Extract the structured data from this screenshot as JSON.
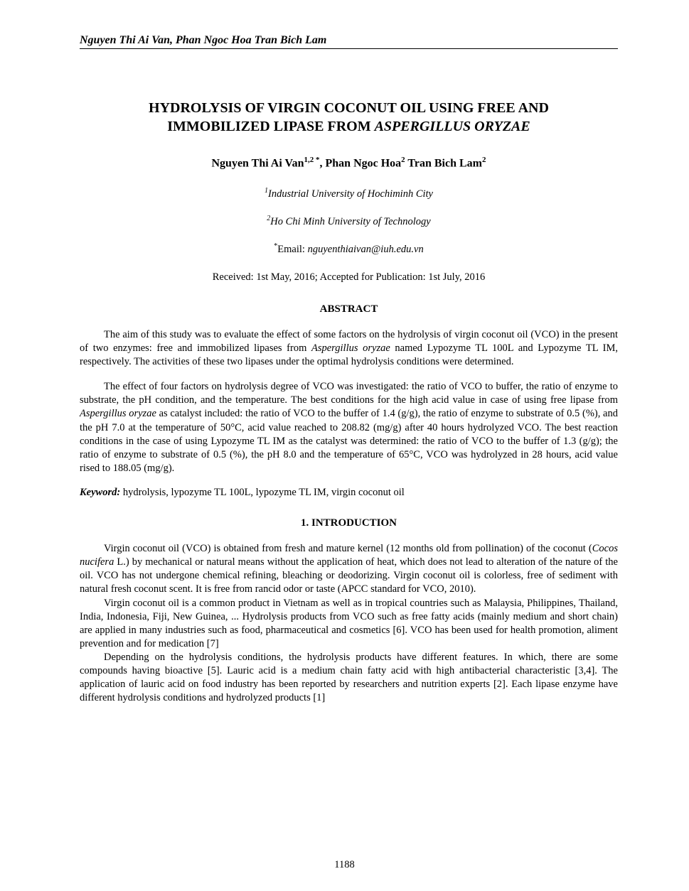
{
  "header": {
    "running": "Nguyen Thi Ai Van, Phan Ngoc Hoa Tran Bich Lam"
  },
  "title": {
    "line1": "HYDROLYSIS OF VIRGIN COCONUT OIL USING FREE AND",
    "line2_plain": "IMMOBILIZED LIPASE FROM ",
    "line2_italic": "ASPERGILLUS ORYZAE"
  },
  "authors": {
    "a1_name": "Nguyen Thi Ai Van",
    "a1_sup": "1,2 *",
    "sep1": ", ",
    "a2_name": "Phan Ngoc Hoa",
    "a2_sup": "2",
    "sep2": " ",
    "a3_name": "Tran Bich Lam",
    "a3_sup": "2"
  },
  "affiliations": {
    "aff1_sup": "1",
    "aff1": "Industrial University of Hochiminh City",
    "aff2_sup": "2",
    "aff2": "Ho Chi Minh University of Technology"
  },
  "email": {
    "star": "*",
    "label": "Email: ",
    "address": "nguyenthiaivan@iuh.edu.vn"
  },
  "dates": "Received: 1st May, 2016; Accepted for Publication: 1st July, 2016",
  "abstract": {
    "heading": "ABSTRACT",
    "p1_a": "The aim of this study was to evaluate the effect of some factors on the hydrolysis of virgin coconut oil (VCO) in the present of two enzymes: free and immobilized lipases from ",
    "p1_b_italic": "Aspergillus oryzae",
    "p1_c": " named Lypozyme TL 100L and Lypozyme TL IM, respectively. The activities of these two lipases under the optimal hydrolysis conditions were determined.",
    "p2_a": "The effect of four factors on hydrolysis degree of VCO was investigated: the ratio of VCO to buffer, the ratio of enzyme to substrate, the pH condition, and the temperature. The best conditions for the high acid value in case of using free lipase from ",
    "p2_b_italic": "Aspergillus oryzae",
    "p2_c": " as catalyst included: the ratio of VCO to the buffer of 1.4 (g/g), the ratio of enzyme to substrate of 0.5 (%), and the pH 7.0 at the temperature of 50°C, acid value reached to 208.82 (mg/g) after 40 hours hydrolyzed VCO. The best reaction conditions in the case of using Lypozyme TL IM as the catalyst was determined: the ratio of VCO to the buffer of 1.3 (g/g); the ratio of enzyme to substrate of 0.5 (%), the pH 8.0 and the temperature of 65°C, VCO was hydrolyzed in 28 hours, acid value rised to 188.05 (mg/g)."
  },
  "keywords": {
    "label": "Keyword:",
    "text": " hydrolysis, lypozyme TL 100L, lypozyme TL IM, virgin coconut oil"
  },
  "intro": {
    "heading": "1.    INTRODUCTION",
    "p1_a": "Virgin coconut oil (VCO) is obtained from fresh and mature kernel (12 months old from pollination) of the coconut (",
    "p1_b_italic": "Cocos nucifera",
    "p1_c": " L.) by mechanical or natural means without the application of heat, which does not lead to alteration of the nature of the oil. VCO has not undergone chemical refining, bleaching or deodorizing. Virgin coconut oil is colorless, free of sediment with natural fresh coconut scent. It is free from rancid odor or taste (APCC standard for VCO, 2010).",
    "p2": "Virgin coconut oil is a common product in Vietnam as well as in tropical countries such as Malaysia, Philippines, Thailand, India, Indonesia, Fiji, New Guinea, ... Hydrolysis products from VCO such as free fatty acids (mainly medium and short chain) are applied in many industries such as food, pharmaceutical and cosmetics [6]. VCO has been used for health promotion, aliment prevention and for medication [7]",
    "p3": "Depending on the hydrolysis conditions, the hydrolysis products have different features. In which, there are some compounds having bioactive [5]. Lauric acid is a medium chain fatty acid with high antibacterial characteristic [3,4]. The application of lauric acid on food industry has been reported by researchers and nutrition experts [2]. Each lipase enzyme have different hydrolysis conditions and hydrolyzed products [1]"
  },
  "page_number": "1188"
}
